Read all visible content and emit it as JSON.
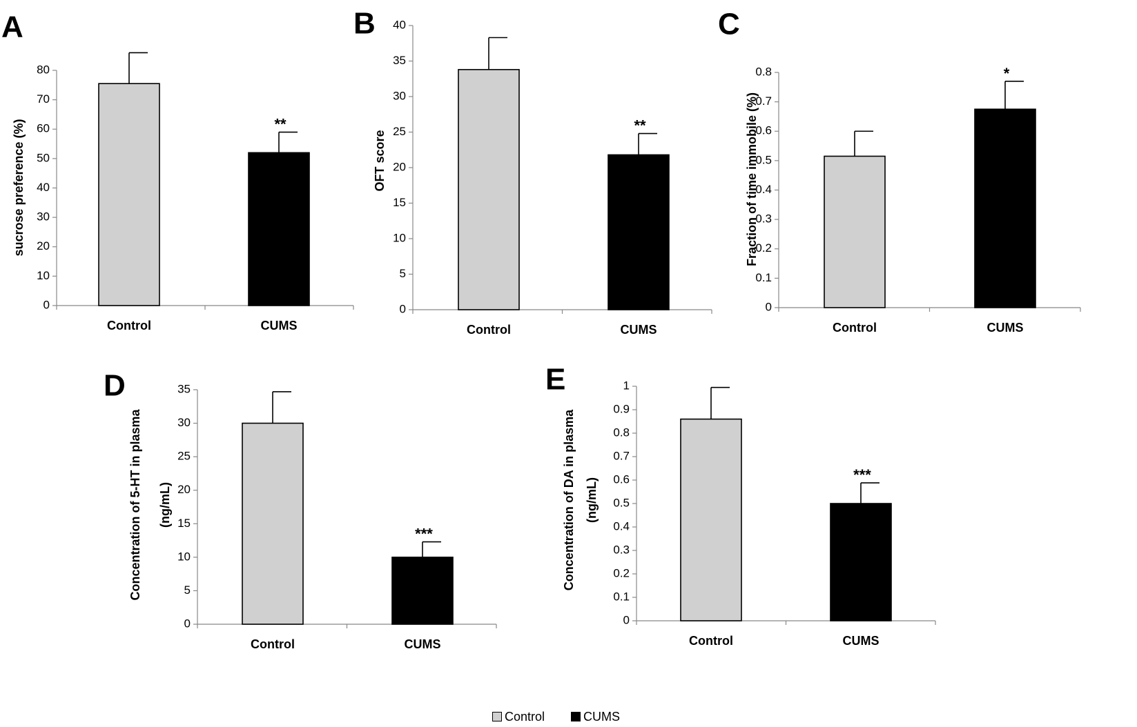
{
  "legend": {
    "control_label": "Control",
    "cums_label": "CUMS",
    "control_color": "#d0d0d0",
    "cums_color": "#000000"
  },
  "chart_data": [
    {
      "panel": "A",
      "type": "bar",
      "categories": [
        "Control",
        "CUMS"
      ],
      "values": [
        75.5,
        52
      ],
      "errors": [
        10.5,
        7
      ],
      "significance": [
        "",
        "**"
      ],
      "colors": [
        "#d0d0d0",
        "#000000"
      ],
      "ylabel": "sucrose preference (%)",
      "ylim": [
        0,
        80
      ],
      "yticks": [
        0,
        10,
        20,
        30,
        40,
        50,
        60,
        70,
        80
      ],
      "tick_labels": [
        "0",
        "10",
        "20",
        "30",
        "40",
        "50",
        "60",
        "70",
        "80"
      ],
      "grid": false
    },
    {
      "panel": "B",
      "type": "bar",
      "categories": [
        "Control",
        "CUMS"
      ],
      "values": [
        33.8,
        21.8
      ],
      "errors": [
        4.5,
        3
      ],
      "significance": [
        "",
        "**"
      ],
      "colors": [
        "#d0d0d0",
        "#000000"
      ],
      "ylabel": "OFT score",
      "ylim": [
        0,
        40
      ],
      "yticks": [
        0,
        5,
        10,
        15,
        20,
        25,
        30,
        35,
        40
      ],
      "tick_labels": [
        "0",
        "5",
        "10",
        "15",
        "20",
        "25",
        "30",
        "35",
        "40"
      ],
      "grid": false
    },
    {
      "panel": "C",
      "type": "bar",
      "categories": [
        "Control",
        "CUMS"
      ],
      "values": [
        0.515,
        0.675
      ],
      "errors": [
        0.085,
        0.095
      ],
      "significance": [
        "",
        "*"
      ],
      "colors": [
        "#d0d0d0",
        "#000000"
      ],
      "ylabel": "Fraction of time immobile (%)",
      "ylim": [
        0,
        0.8
      ],
      "yticks": [
        0,
        0.1,
        0.2,
        0.3,
        0.4,
        0.5,
        0.6,
        0.7,
        0.8
      ],
      "tick_labels": [
        "0",
        "0.1",
        "0.2",
        "0.3",
        "0.4",
        "0.5",
        "0.6",
        "0.7",
        "0.8"
      ],
      "grid": false
    },
    {
      "panel": "D",
      "type": "bar",
      "categories": [
        "Control",
        "CUMS"
      ],
      "values": [
        30,
        10
      ],
      "errors": [
        4.7,
        2.3
      ],
      "significance": [
        "",
        "***"
      ],
      "colors": [
        "#d0d0d0",
        "#000000"
      ],
      "ylabel_lines": [
        "Concentration of 5-HT in plasma",
        "(ng/mL)"
      ],
      "ylim": [
        0,
        35
      ],
      "yticks": [
        0,
        5,
        10,
        15,
        20,
        25,
        30,
        35
      ],
      "tick_labels": [
        "0",
        "5",
        "10",
        "15",
        "20",
        "25",
        "30",
        "35"
      ],
      "grid": false
    },
    {
      "panel": "E",
      "type": "bar",
      "categories": [
        "Control",
        "CUMS"
      ],
      "values": [
        0.86,
        0.5
      ],
      "errors": [
        0.135,
        0.088
      ],
      "significance": [
        "",
        "***"
      ],
      "colors": [
        "#d0d0d0",
        "#000000"
      ],
      "ylabel_lines": [
        "Concentration of DA in plasma",
        "(ng/mL)"
      ],
      "ylim": [
        0,
        1
      ],
      "yticks": [
        0,
        0.1,
        0.2,
        0.3,
        0.4,
        0.5,
        0.6,
        0.7,
        0.8,
        0.9,
        1
      ],
      "tick_labels": [
        "0",
        "0.1",
        "0.2",
        "0.3",
        "0.4",
        "0.5",
        "0.6",
        "0.7",
        "0.8",
        "0.9",
        "1"
      ],
      "grid": false
    }
  ]
}
